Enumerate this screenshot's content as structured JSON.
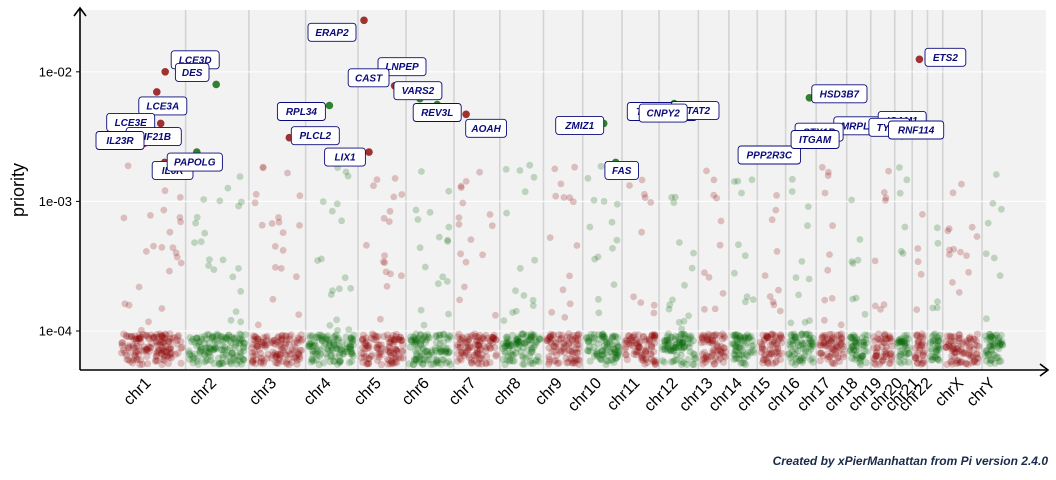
{
  "chart_data": {
    "type": "scatter",
    "ylabel": "priority",
    "yscale": "log",
    "ylim": [
      5e-05,
      0.03
    ],
    "yticks": [
      {
        "value": 0.0001,
        "label": "1e-04"
      },
      {
        "value": 0.001,
        "label": "1e-03"
      },
      {
        "value": 0.01,
        "label": "1e-02"
      }
    ],
    "chromosomes": [
      "chr1",
      "chr2",
      "chr3",
      "chr4",
      "chr5",
      "chr6",
      "chr7",
      "chr8",
      "chr9",
      "chr10",
      "chr11",
      "chr12",
      "chr13",
      "chr14",
      "chr15",
      "chr16",
      "chr17",
      "chr18",
      "chr19",
      "chr20",
      "chr21",
      "chr22",
      "chrX",
      "chrY"
    ],
    "chromosome_colors": [
      "#8b0000",
      "#006400"
    ],
    "grid": true,
    "genes": [
      {
        "name": "ERAP2",
        "chr": "chr5",
        "priority": 0.025
      },
      {
        "name": "ETS2",
        "chr": "chr21",
        "priority": 0.0125
      },
      {
        "name": "LCE3D",
        "chr": "chr1",
        "priority": 0.01
      },
      {
        "name": "LNPEP",
        "chr": "chr5",
        "priority": 0.0095
      },
      {
        "name": "DES",
        "chr": "chr2",
        "priority": 0.008
      },
      {
        "name": "CAST",
        "chr": "chr5",
        "priority": 0.0078
      },
      {
        "name": "VARS2",
        "chr": "chr6",
        "priority": 0.0062
      },
      {
        "name": "LCE3A",
        "chr": "chr1",
        "priority": 0.007
      },
      {
        "name": "HSD3B7",
        "chr": "chr16",
        "priority": 0.0063
      },
      {
        "name": "TNFRSF1A",
        "chr": "chr12",
        "priority": 0.0057
      },
      {
        "name": "REV3L",
        "chr": "chr6",
        "priority": 0.0056
      },
      {
        "name": "STAT2",
        "chr": "chr12",
        "priority": 0.0052
      },
      {
        "name": "RPL34",
        "chr": "chr4",
        "priority": 0.0055
      },
      {
        "name": "CNPY2",
        "chr": "chr12",
        "priority": 0.0048
      },
      {
        "name": "AOAH",
        "chr": "chr7",
        "priority": 0.0047
      },
      {
        "name": "ZMIZ1",
        "chr": "chr10",
        "priority": 0.004
      },
      {
        "name": "MRPL4",
        "chr": "chr19",
        "priority": 0.0037
      },
      {
        "name": "ICAM1",
        "chr": "chr19",
        "priority": 0.004
      },
      {
        "name": "LCE3E",
        "chr": "chr1",
        "priority": 0.004
      },
      {
        "name": "KIF21B",
        "chr": "chr1",
        "priority": 0.003
      },
      {
        "name": "STX1B",
        "chr": "chr16",
        "priority": 0.0033
      },
      {
        "name": "PLCL2",
        "chr": "chr3",
        "priority": 0.0031
      },
      {
        "name": "LIX1",
        "chr": "chr5",
        "priority": 0.0024
      },
      {
        "name": "PPP2R3C",
        "chr": "chr14",
        "priority": 0.0022
      },
      {
        "name": "TYK2",
        "chr": "chr19",
        "priority": 0.0036
      },
      {
        "name": "RNF114",
        "chr": "chr20",
        "priority": 0.0032
      },
      {
        "name": "ITGAM",
        "chr": "chr16",
        "priority": 0.0028
      },
      {
        "name": "FAS",
        "chr": "chr10",
        "priority": 0.002
      },
      {
        "name": "IL23R",
        "chr": "chr1",
        "priority": 0.0028
      },
      {
        "name": "IL6R",
        "chr": "chr1",
        "priority": 0.002
      },
      {
        "name": "PAPOLG",
        "chr": "chr2",
        "priority": 0.0024
      }
    ]
  },
  "caption": "Created by xPierManhattan from Pi version 2.4.0"
}
